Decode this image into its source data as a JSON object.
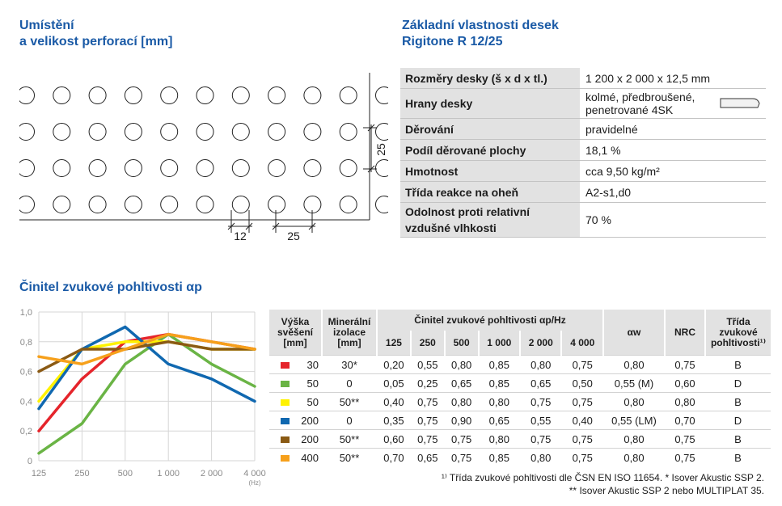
{
  "left_heading": [
    "Umístění",
    "a velikost perforací [mm]"
  ],
  "right_heading": [
    "Základní vlastnosti desek",
    "Rigitone R 12/25"
  ],
  "perforation": {
    "dim_small": "12",
    "dim_pitch_h": "25",
    "dim_pitch_v": "25",
    "rows": 4,
    "cols": 11
  },
  "properties": [
    {
      "label": "Rozměry desky (š x d x tl.)",
      "value": "1 200 x 2 000 x 12,5 mm"
    },
    {
      "label": "Hrany desky",
      "value_lines": [
        "kolmé, předbroušené,",
        "penetrované 4SK"
      ],
      "icon": "board-edge-4sk-icon"
    },
    {
      "label": "Děrování",
      "value": "pravidelné"
    },
    {
      "label": "Podíl děrované plochy",
      "value": "18,1 %"
    },
    {
      "label": "Hmotnost",
      "value": "cca 9,50 kg/m²"
    },
    {
      "label": "Třída reakce na oheň",
      "value": "A2-s1,d0"
    },
    {
      "label_lines": [
        "Odolnost proti relativní",
        "vzdušné vlhkosti"
      ],
      "value": "70 %"
    }
  ],
  "chart_heading": "Činitel zvukové pohltivosti αp",
  "chart_data": {
    "type": "line",
    "x": [
      "125",
      "250",
      "500",
      "1 000",
      "2 000",
      "4 000"
    ],
    "x_unit": "(Hz)",
    "ylim": [
      0,
      1.0
    ],
    "yticks": [
      "0",
      "0,2",
      "0,4",
      "0,6",
      "0,8",
      "1,0"
    ],
    "grid": true,
    "series": [
      {
        "color": "#e5242b",
        "values": [
          0.2,
          0.55,
          0.8,
          0.85,
          0.8,
          0.75
        ]
      },
      {
        "color": "#6ab445",
        "values": [
          0.05,
          0.25,
          0.65,
          0.85,
          0.65,
          0.5
        ]
      },
      {
        "color": "#fff200",
        "values": [
          0.4,
          0.75,
          0.8,
          0.8,
          0.75,
          0.75
        ]
      },
      {
        "color": "#1068b0",
        "values": [
          0.35,
          0.75,
          0.9,
          0.65,
          0.55,
          0.4
        ]
      },
      {
        "color": "#8a5a14",
        "values": [
          0.6,
          0.75,
          0.75,
          0.8,
          0.75,
          0.75
        ]
      },
      {
        "color": "#f6a01b",
        "values": [
          0.7,
          0.65,
          0.75,
          0.85,
          0.8,
          0.75
        ]
      }
    ]
  },
  "absorption_table": {
    "headers": {
      "height": [
        "Výška",
        "svěšení",
        "[mm]"
      ],
      "insulation": [
        "Minerální",
        "izolace",
        "[mm]"
      ],
      "group": "Činitel zvukové pohltivosti αp/Hz",
      "freqs": [
        "125",
        "250",
        "500",
        "1 000",
        "2 000",
        "4 000"
      ],
      "aw": "αw",
      "nrc": "NRC",
      "class": [
        "Třída",
        "zvukové",
        "pohltivosti¹⁾"
      ]
    },
    "rows": [
      {
        "color": "#e5242b",
        "height": "30",
        "insulation": "30*",
        "values": [
          "0,20",
          "0,55",
          "0,80",
          "0,85",
          "0,80",
          "0,75"
        ],
        "aw": "0,80",
        "nrc": "0,75",
        "class": "B"
      },
      {
        "color": "#6ab445",
        "height": "50",
        "insulation": "0",
        "values": [
          "0,05",
          "0,25",
          "0,65",
          "0,85",
          "0,65",
          "0,50"
        ],
        "aw": "0,55 (M)",
        "nrc": "0,60",
        "class": "D"
      },
      {
        "color": "#fff200",
        "height": "50",
        "insulation": "50**",
        "values": [
          "0,40",
          "0,75",
          "0,80",
          "0,80",
          "0,75",
          "0,75"
        ],
        "aw": "0,80",
        "nrc": "0,80",
        "class": "B"
      },
      {
        "color": "#1068b0",
        "height": "200",
        "insulation": "0",
        "values": [
          "0,35",
          "0,75",
          "0,90",
          "0,65",
          "0,55",
          "0,40"
        ],
        "aw": "0,55 (LM)",
        "nrc": "0,70",
        "class": "D"
      },
      {
        "color": "#8a5a14",
        "height": "200",
        "insulation": "50**",
        "values": [
          "0,60",
          "0,75",
          "0,75",
          "0,80",
          "0,75",
          "0,75"
        ],
        "aw": "0,80",
        "nrc": "0,75",
        "class": "B"
      },
      {
        "color": "#f6a01b",
        "height": "400",
        "insulation": "50**",
        "values": [
          "0,70",
          "0,65",
          "0,75",
          "0,85",
          "0,80",
          "0,75"
        ],
        "aw": "0,80",
        "nrc": "0,75",
        "class": "B"
      }
    ]
  },
  "footnotes": [
    "¹⁾ Třída zvukové pohltivosti dle ČSN EN ISO 11654. * Isover Akustic SSP 2.",
    "** Isover Akustic SSP 2 nebo MULTIPLAT 35."
  ]
}
